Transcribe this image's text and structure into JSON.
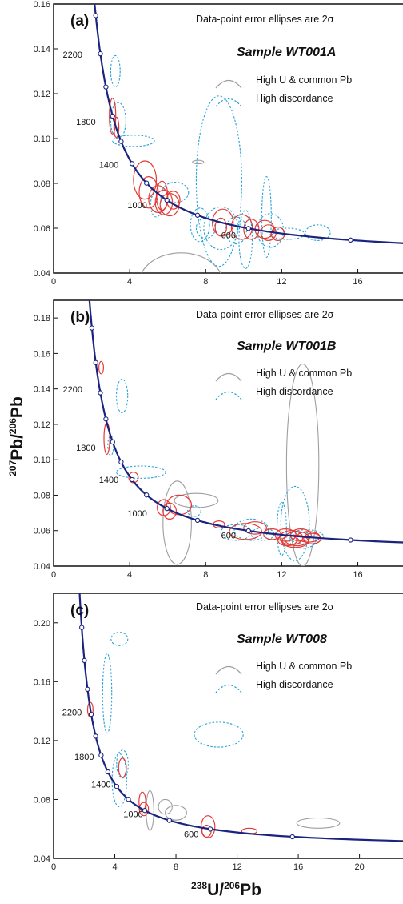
{
  "figure": {
    "x_axis_label": {
      "sup": "238",
      "main": "U/",
      "sup2": "206",
      "main2": "Pb"
    },
    "y_axis_label": {
      "sup": "207",
      "main": "Pb/",
      "sup2": "206",
      "main2": "Pb"
    }
  },
  "colors": {
    "concordia": "#1a237e",
    "normal": "#e53935",
    "high_u": "#9e9e9e",
    "discordant": "#29a3d6"
  },
  "chart_data": [
    {
      "type": "scatter",
      "panel_label": "(a)",
      "note": "Data-point error ellipses are 2σ",
      "sample": "Sample WT001A",
      "legend": {
        "high_u": "High U & common Pb",
        "discordant": "High discordance"
      },
      "xlim": [
        0,
        18.5
      ],
      "ylim": [
        0.04,
        0.16
      ],
      "xticks": [
        0,
        4,
        8,
        12,
        16
      ],
      "yticks": [
        0.04,
        0.06,
        0.08,
        0.1,
        0.12,
        0.14,
        0.16
      ],
      "ytick_labels": [
        "0.04",
        "0.06",
        "0.08",
        "0.10",
        "0.12",
        "0.14",
        "0.16"
      ],
      "age_labels": [
        {
          "text": "2200",
          "x": 1.0,
          "y": 0.136
        },
        {
          "text": "1800",
          "x": 1.7,
          "y": 0.106
        },
        {
          "text": "1400",
          "x": 2.9,
          "y": 0.087
        },
        {
          "text": "1000",
          "x": 4.4,
          "y": 0.069
        },
        {
          "text": "600",
          "x": 9.2,
          "y": 0.0555
        }
      ],
      "ellipses": [
        {
          "cat": "discordant",
          "x": 3.25,
          "y": 0.13,
          "rx": 0.25,
          "ry": 0.007
        },
        {
          "cat": "discordant",
          "x": 3.4,
          "y": 0.108,
          "rx": 0.4,
          "ry": 0.008
        },
        {
          "cat": "discordant",
          "x": 4.2,
          "y": 0.099,
          "rx": 1.1,
          "ry": 0.0025
        },
        {
          "cat": "normal",
          "x": 3.1,
          "y": 0.11,
          "rx": 0.17,
          "ry": 0.008
        },
        {
          "cat": "normal",
          "x": 3.3,
          "y": 0.105,
          "rx": 0.13,
          "ry": 0.0045
        },
        {
          "cat": "normal",
          "x": 4.8,
          "y": 0.0815,
          "rx": 0.6,
          "ry": 0.0085
        },
        {
          "cat": "normal",
          "x": 5.0,
          "y": 0.076,
          "rx": 0.5,
          "ry": 0.007
        },
        {
          "cat": "normal",
          "x": 5.5,
          "y": 0.073,
          "rx": 0.5,
          "ry": 0.006
        },
        {
          "cat": "normal",
          "x": 5.8,
          "y": 0.0715,
          "rx": 0.45,
          "ry": 0.0055
        },
        {
          "cat": "normal",
          "x": 6.1,
          "y": 0.0705,
          "rx": 0.5,
          "ry": 0.005
        },
        {
          "cat": "normal",
          "x": 5.7,
          "y": 0.0745,
          "rx": 0.3,
          "ry": 0.0065
        },
        {
          "cat": "normal",
          "x": 6.3,
          "y": 0.0725,
          "rx": 0.35,
          "ry": 0.004
        },
        {
          "cat": "discordant",
          "x": 6.4,
          "y": 0.076,
          "rx": 0.7,
          "ry": 0.0045
        },
        {
          "cat": "discordant",
          "x": 5.4,
          "y": 0.0705,
          "rx": 0.3,
          "ry": 0.0055
        },
        {
          "cat": "high_u",
          "x": 7.6,
          "y": 0.0895,
          "rx": 0.3,
          "ry": 0.0008
        },
        {
          "cat": "high_u",
          "x": 6.7,
          "y": 0.0355,
          "rx": 2.2,
          "ry": 0.0135
        },
        {
          "cat": "discordant",
          "x": 8.7,
          "y": 0.081,
          "rx": 1.2,
          "ry": 0.038
        },
        {
          "cat": "discordant",
          "x": 8.8,
          "y": 0.06,
          "rx": 0.9,
          "ry": 0.0095
        },
        {
          "cat": "discordant",
          "x": 8.0,
          "y": 0.06,
          "rx": 0.5,
          "ry": 0.0045
        },
        {
          "cat": "discordant",
          "x": 9.6,
          "y": 0.059,
          "rx": 0.55,
          "ry": 0.006
        },
        {
          "cat": "discordant",
          "x": 10.1,
          "y": 0.055,
          "rx": 0.35,
          "ry": 0.013
        },
        {
          "cat": "discordant",
          "x": 11.2,
          "y": 0.065,
          "rx": 0.25,
          "ry": 0.018
        },
        {
          "cat": "discordant",
          "x": 11.4,
          "y": 0.059,
          "rx": 0.7,
          "ry": 0.0075
        },
        {
          "cat": "discordant",
          "x": 12.3,
          "y": 0.0575,
          "rx": 0.9,
          "ry": 0.0025
        },
        {
          "cat": "discordant",
          "x": 13.9,
          "y": 0.058,
          "rx": 0.65,
          "ry": 0.0035
        },
        {
          "cat": "discordant",
          "x": 7.7,
          "y": 0.0615,
          "rx": 0.5,
          "ry": 0.0075
        },
        {
          "cat": "normal",
          "x": 8.9,
          "y": 0.0625,
          "rx": 0.55,
          "ry": 0.006
        },
        {
          "cat": "normal",
          "x": 8.8,
          "y": 0.0605,
          "rx": 0.3,
          "ry": 0.004
        },
        {
          "cat": "normal",
          "x": 9.9,
          "y": 0.0605,
          "rx": 0.55,
          "ry": 0.0055
        },
        {
          "cat": "normal",
          "x": 10.4,
          "y": 0.0595,
          "rx": 0.4,
          "ry": 0.0045
        },
        {
          "cat": "normal",
          "x": 11.1,
          "y": 0.0595,
          "rx": 0.5,
          "ry": 0.004
        },
        {
          "cat": "normal",
          "x": 11.3,
          "y": 0.058,
          "rx": 0.4,
          "ry": 0.0035
        },
        {
          "cat": "normal",
          "x": 11.8,
          "y": 0.0575,
          "rx": 0.35,
          "ry": 0.003
        }
      ]
    },
    {
      "type": "scatter",
      "panel_label": "(b)",
      "note": "Data-point error ellipses are 2σ",
      "sample": "Sample WT001B",
      "legend": {
        "high_u": "High U & common Pb",
        "discordant": "High discordance"
      },
      "xlim": [
        0,
        18.5
      ],
      "ylim": [
        0.04,
        0.19
      ],
      "xticks": [
        0,
        4,
        8,
        12,
        16
      ],
      "yticks": [
        0.04,
        0.06,
        0.08,
        0.1,
        0.12,
        0.14,
        0.16,
        0.18
      ],
      "ytick_labels": [
        "0.04",
        "0.06",
        "0.08",
        "0.10",
        "0.12",
        "0.14",
        "0.16",
        "0.18"
      ],
      "age_labels": [
        {
          "text": "2200",
          "x": 1.0,
          "y": 0.138
        },
        {
          "text": "1800",
          "x": 1.7,
          "y": 0.105
        },
        {
          "text": "1400",
          "x": 2.9,
          "y": 0.087
        },
        {
          "text": "1000",
          "x": 4.4,
          "y": 0.068
        },
        {
          "text": "600",
          "x": 9.2,
          "y": 0.0555
        }
      ],
      "ellipses": [
        {
          "cat": "normal",
          "x": 2.5,
          "y": 0.152,
          "rx": 0.12,
          "ry": 0.0035
        },
        {
          "cat": "discordant",
          "x": 3.6,
          "y": 0.136,
          "rx": 0.3,
          "ry": 0.0095
        },
        {
          "cat": "normal",
          "x": 2.8,
          "y": 0.112,
          "rx": 0.15,
          "ry": 0.009
        },
        {
          "cat": "discordant",
          "x": 3.0,
          "y": 0.108,
          "rx": 0.15,
          "ry": 0.0055
        },
        {
          "cat": "normal",
          "x": 4.2,
          "y": 0.09,
          "rx": 0.25,
          "ry": 0.003
        },
        {
          "cat": "discordant",
          "x": 4.6,
          "y": 0.093,
          "rx": 1.3,
          "ry": 0.0035
        },
        {
          "cat": "normal",
          "x": 5.8,
          "y": 0.073,
          "rx": 0.35,
          "ry": 0.0045
        },
        {
          "cat": "normal",
          "x": 6.1,
          "y": 0.071,
          "rx": 0.35,
          "ry": 0.0045
        },
        {
          "cat": "normal",
          "x": 6.6,
          "y": 0.0745,
          "rx": 0.65,
          "ry": 0.0055
        },
        {
          "cat": "high_u",
          "x": 6.5,
          "y": 0.0645,
          "rx": 0.75,
          "ry": 0.0235
        },
        {
          "cat": "high_u",
          "x": 7.5,
          "y": 0.077,
          "rx": 1.15,
          "ry": 0.004
        },
        {
          "cat": "discordant",
          "x": 7.4,
          "y": 0.071,
          "rx": 0.35,
          "ry": 0.003
        },
        {
          "cat": "normal",
          "x": 8.7,
          "y": 0.0635,
          "rx": 0.3,
          "ry": 0.002
        },
        {
          "cat": "high_u",
          "x": 13.1,
          "y": 0.097,
          "rx": 0.85,
          "ry": 0.057
        },
        {
          "cat": "discordant",
          "x": 9.6,
          "y": 0.059,
          "rx": 0.8,
          "ry": 0.0045
        },
        {
          "cat": "discordant",
          "x": 10.4,
          "y": 0.0605,
          "rx": 0.9,
          "ry": 0.006
        },
        {
          "cat": "discordant",
          "x": 11.0,
          "y": 0.058,
          "rx": 0.6,
          "ry": 0.0035
        },
        {
          "cat": "discordant",
          "x": 12.0,
          "y": 0.061,
          "rx": 0.25,
          "ry": 0.015
        },
        {
          "cat": "discordant",
          "x": 12.7,
          "y": 0.064,
          "rx": 0.75,
          "ry": 0.021
        },
        {
          "cat": "discordant",
          "x": 13.3,
          "y": 0.0565,
          "rx": 0.9,
          "ry": 0.004
        },
        {
          "cat": "discordant",
          "x": 13.1,
          "y": 0.0545,
          "rx": 0.7,
          "ry": 0.0045
        },
        {
          "cat": "normal",
          "x": 10.1,
          "y": 0.0595,
          "rx": 0.85,
          "ry": 0.0045
        },
        {
          "cat": "normal",
          "x": 10.6,
          "y": 0.0615,
          "rx": 0.6,
          "ry": 0.0035
        },
        {
          "cat": "normal",
          "x": 11.5,
          "y": 0.058,
          "rx": 0.45,
          "ry": 0.003
        },
        {
          "cat": "normal",
          "x": 12.2,
          "y": 0.0575,
          "rx": 0.55,
          "ry": 0.0035
        },
        {
          "cat": "normal",
          "x": 12.5,
          "y": 0.056,
          "rx": 0.6,
          "ry": 0.004
        },
        {
          "cat": "normal",
          "x": 12.8,
          "y": 0.0555,
          "rx": 0.65,
          "ry": 0.004
        },
        {
          "cat": "normal",
          "x": 13.0,
          "y": 0.0575,
          "rx": 0.55,
          "ry": 0.0035
        },
        {
          "cat": "normal",
          "x": 12.7,
          "y": 0.054,
          "rx": 0.7,
          "ry": 0.0035
        },
        {
          "cat": "normal",
          "x": 13.4,
          "y": 0.0565,
          "rx": 0.6,
          "ry": 0.003
        },
        {
          "cat": "normal",
          "x": 12.3,
          "y": 0.0545,
          "rx": 0.5,
          "ry": 0.003
        },
        {
          "cat": "normal",
          "x": 13.6,
          "y": 0.0555,
          "rx": 0.45,
          "ry": 0.003
        }
      ]
    },
    {
      "type": "scatter",
      "panel_label": "(c)",
      "note": "Data-point error ellipses are 2σ",
      "sample": "Sample WT008",
      "legend": {
        "high_u": "High U & common Pb",
        "discordant": "High discordance"
      },
      "xlim": [
        0,
        23
      ],
      "ylim": [
        0.04,
        0.22
      ],
      "xticks": [
        0,
        4,
        8,
        12,
        16,
        20
      ],
      "yticks": [
        0.04,
        0.08,
        0.12,
        0.16,
        0.2
      ],
      "ytick_labels": [
        "0.04",
        "0.08",
        "0.12",
        "0.16",
        "0.20"
      ],
      "age_labels": [
        {
          "text": "2200",
          "x": 1.2,
          "y": 0.137
        },
        {
          "text": "1800",
          "x": 2.0,
          "y": 0.107
        },
        {
          "text": "1400",
          "x": 3.1,
          "y": 0.088
        },
        {
          "text": "1000",
          "x": 5.2,
          "y": 0.068
        },
        {
          "text": "600",
          "x": 9.0,
          "y": 0.0545
        }
      ],
      "ellipses": [
        {
          "cat": "discordant",
          "x": 4.3,
          "y": 0.189,
          "rx": 0.55,
          "ry": 0.0045
        },
        {
          "cat": "discordant",
          "x": 3.5,
          "y": 0.152,
          "rx": 0.3,
          "ry": 0.027
        },
        {
          "cat": "normal",
          "x": 2.4,
          "y": 0.141,
          "rx": 0.18,
          "ry": 0.005
        },
        {
          "cat": "discordant",
          "x": 10.8,
          "y": 0.124,
          "rx": 1.6,
          "ry": 0.0085
        },
        {
          "cat": "discordant",
          "x": 4.5,
          "y": 0.104,
          "rx": 0.38,
          "ry": 0.0095
        },
        {
          "cat": "discordant",
          "x": 4.3,
          "y": 0.093,
          "rx": 0.48,
          "ry": 0.018
        },
        {
          "cat": "normal",
          "x": 4.5,
          "y": 0.1015,
          "rx": 0.25,
          "ry": 0.0065
        },
        {
          "cat": "high_u",
          "x": 6.3,
          "y": 0.0725,
          "rx": 0.25,
          "ry": 0.0135
        },
        {
          "cat": "high_u",
          "x": 7.3,
          "y": 0.075,
          "rx": 0.45,
          "ry": 0.005
        },
        {
          "cat": "high_u",
          "x": 8.0,
          "y": 0.071,
          "rx": 0.7,
          "ry": 0.005
        },
        {
          "cat": "high_u",
          "x": 17.3,
          "y": 0.064,
          "rx": 1.4,
          "ry": 0.0035
        },
        {
          "cat": "normal",
          "x": 5.8,
          "y": 0.0785,
          "rx": 0.22,
          "ry": 0.0065
        },
        {
          "cat": "normal",
          "x": 5.9,
          "y": 0.0735,
          "rx": 0.3,
          "ry": 0.0045
        },
        {
          "cat": "normal",
          "x": 10.1,
          "y": 0.0615,
          "rx": 0.45,
          "ry": 0.0075
        },
        {
          "cat": "normal",
          "x": 10.0,
          "y": 0.0585,
          "rx": 0.3,
          "ry": 0.004
        },
        {
          "cat": "normal",
          "x": 12.8,
          "y": 0.0585,
          "rx": 0.5,
          "ry": 0.002
        }
      ]
    }
  ]
}
